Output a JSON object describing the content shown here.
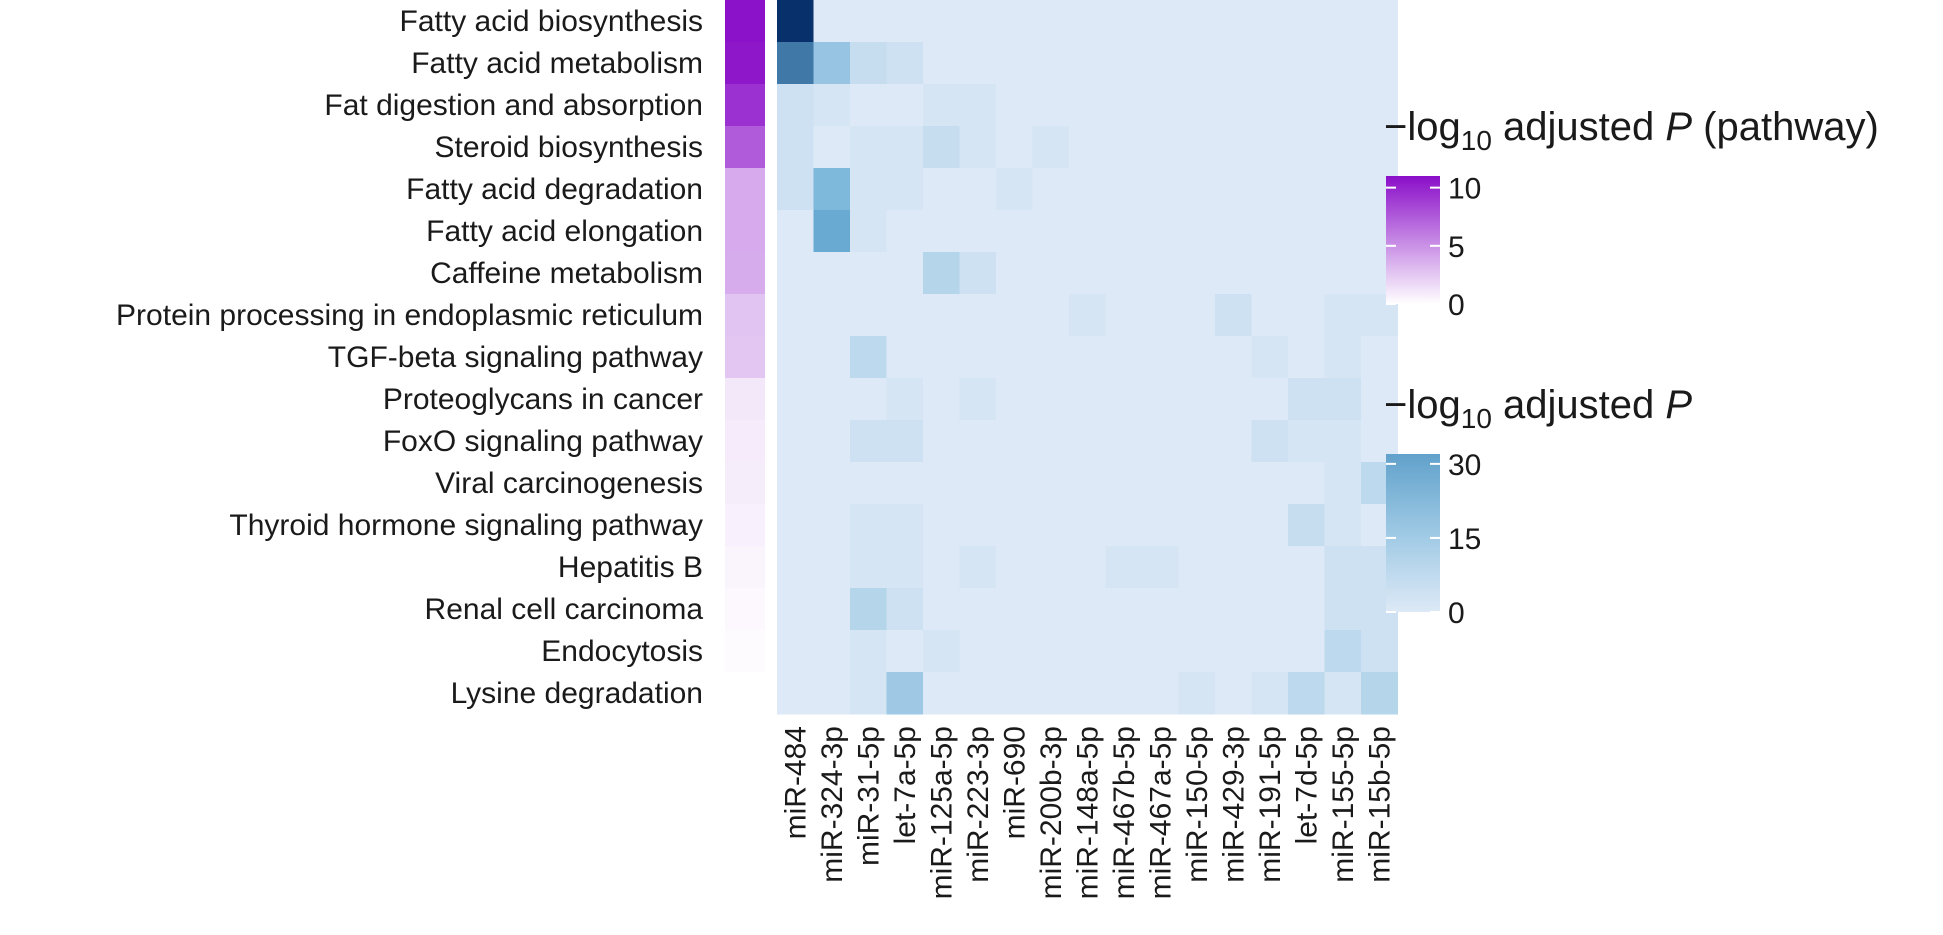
{
  "chart_data": {
    "type": "heatmap",
    "rows": [
      "Fatty acid biosynthesis",
      "Fatty acid metabolism",
      "Fat digestion and absorption",
      "Steroid biosynthesis",
      "Fatty acid degradation",
      "Fatty acid elongation",
      "Caffeine metabolism",
      "Protein processing in endoplasmic reticulum",
      "TGF-beta signaling pathway",
      "Proteoglycans in cancer",
      "FoxO signaling pathway",
      "Viral carcinogenesis",
      "Thyroid hormone signaling pathway",
      "Hepatitis B",
      "Renal cell carcinoma",
      "Endocytosis",
      "Lysine degradation"
    ],
    "columns": [
      "miR-484",
      "miR-324-3p",
      "miR-31-5p",
      "let-7a-5p",
      "miR-125a-5p",
      "miR-223-3p",
      "miR-690",
      "miR-200b-3p",
      "miR-148a-5p",
      "miR-467b-5p",
      "miR-467a-5p",
      "miR-150-5p",
      "miR-429-3p",
      "miR-191-5p",
      "let-7d-5p",
      "miR-155-5p",
      "miR-15b-5p"
    ],
    "pathway_values": [
      10.8,
      10.6,
      9.4,
      7.5,
      3.9,
      3.9,
      3.8,
      2.7,
      2.6,
      1.1,
      0.9,
      0.8,
      0.7,
      0.5,
      0.3,
      0.2,
      0.0
    ],
    "values": [
      [
        32,
        0,
        0,
        0,
        0,
        0,
        0,
        0,
        0,
        0,
        0,
        0,
        0,
        0,
        0,
        0,
        0
      ],
      [
        22,
        9,
        3,
        2,
        0,
        0,
        0,
        0,
        0,
        0,
        0,
        0,
        0,
        0,
        0,
        0,
        0
      ],
      [
        2,
        1,
        0,
        0,
        1,
        1,
        0,
        0,
        0,
        0,
        0,
        0,
        0,
        0,
        0,
        0,
        0
      ],
      [
        2,
        0,
        1,
        1,
        3,
        1,
        0,
        1,
        0,
        0,
        0,
        0,
        0,
        0,
        0,
        0,
        0
      ],
      [
        2,
        12,
        1,
        1,
        0,
        0,
        1,
        0,
        0,
        0,
        0,
        0,
        0,
        0,
        0,
        0,
        0
      ],
      [
        0,
        15,
        1,
        0,
        0,
        0,
        0,
        0,
        0,
        0,
        0,
        0,
        0,
        0,
        0,
        0,
        0
      ],
      [
        0,
        0,
        0,
        0,
        5,
        2,
        0,
        0,
        0,
        0,
        0,
        0,
        0,
        0,
        0,
        0,
        0
      ],
      [
        0,
        0,
        0,
        0,
        0,
        0,
        0,
        0,
        1,
        0,
        0,
        0,
        2,
        0,
        0,
        1,
        1
      ],
      [
        0,
        0,
        4,
        0,
        0,
        0,
        0,
        0,
        0,
        0,
        0,
        0,
        0,
        1,
        0,
        1,
        0
      ],
      [
        0,
        0,
        0,
        1,
        0,
        1,
        0,
        0,
        0,
        0,
        0,
        0,
        0,
        0,
        2,
        2,
        0
      ],
      [
        0,
        0,
        2,
        2,
        0,
        0,
        0,
        0,
        0,
        0,
        0,
        0,
        0,
        2,
        1,
        1,
        0
      ],
      [
        0,
        0,
        0,
        0,
        0,
        0,
        0,
        0,
        0,
        0,
        0,
        0,
        0,
        0,
        0,
        1,
        4
      ],
      [
        0,
        0,
        1,
        1,
        0,
        0,
        0,
        0,
        0,
        0,
        0,
        0,
        0,
        0,
        3,
        1,
        0
      ],
      [
        0,
        0,
        1,
        1,
        0,
        1,
        0,
        0,
        0,
        1,
        1,
        0,
        0,
        0,
        0,
        2,
        2
      ],
      [
        0,
        0,
        5,
        2,
        0,
        0,
        0,
        0,
        0,
        0,
        0,
        0,
        0,
        0,
        0,
        2,
        2
      ],
      [
        0,
        0,
        1,
        0,
        1,
        0,
        0,
        0,
        0,
        0,
        0,
        0,
        0,
        0,
        0,
        4,
        2
      ],
      [
        0,
        0,
        1,
        8,
        0,
        0,
        0,
        0,
        0,
        0,
        0,
        1,
        0,
        1,
        4,
        1,
        5
      ]
    ],
    "legends": [
      {
        "title_prefix": "−log",
        "title_sub": "10",
        "title_main": " adjusted ",
        "title_italic": "P",
        "title_suffix": " (pathway)",
        "ticks": [
          10,
          5,
          0
        ],
        "range": [
          0,
          11
        ]
      },
      {
        "title_prefix": "−log",
        "title_sub": "10",
        "title_main": " adjusted ",
        "title_italic": "P",
        "title_suffix": "",
        "ticks": [
          30,
          15,
          0
        ],
        "range": [
          0,
          32
        ]
      }
    ],
    "colors": {
      "pathway_high": "#8a0ec8",
      "pathway_low": "#ffffff",
      "mirna_high": "#08306b",
      "mirna_mid": "#6baed6",
      "mirna_low": "#dde9f6"
    }
  }
}
